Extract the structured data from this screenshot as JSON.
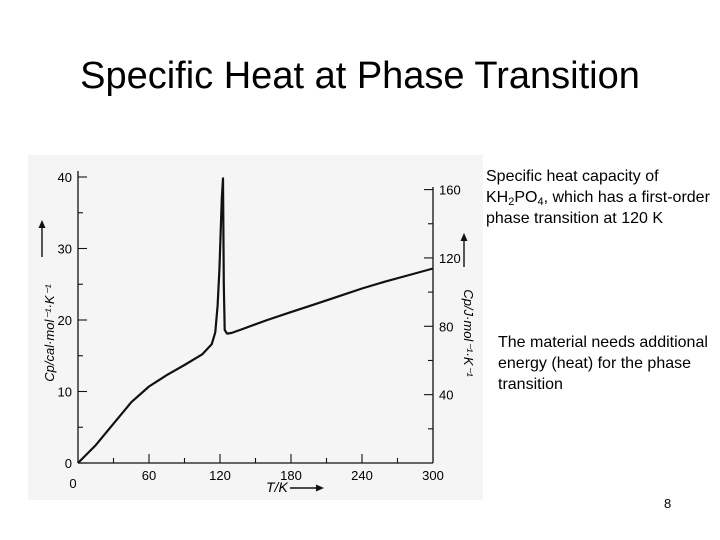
{
  "slide": {
    "title": "Specific Heat at Phase Transition",
    "caption_prefix": "Specific heat capacity of",
    "formula": {
      "k": "KH",
      "h_sub": "2",
      "po": "PO",
      "o_sub": "4"
    },
    "caption_suffix": ", which has a first-order phase transition at 120 K",
    "note": "The material needs additional energy (heat) for the phase transition",
    "page_number": "8"
  },
  "chart_data": {
    "type": "line",
    "x": [
      0,
      15,
      30,
      45,
      60,
      75,
      90,
      105,
      113,
      116,
      118,
      119.5,
      120.5,
      121.5,
      122.5,
      123.2,
      124,
      126,
      130,
      140,
      160,
      180,
      200,
      220,
      240,
      260,
      280,
      300
    ],
    "y": [
      0,
      2.5,
      5.5,
      8.5,
      10.7,
      12.3,
      13.7,
      15.2,
      16.6,
      18.3,
      22,
      27,
      32,
      37,
      39.8,
      25,
      18.6,
      18.1,
      18.2,
      18.8,
      20.0,
      21.1,
      22.2,
      23.3,
      24.4,
      25.4,
      26.3,
      27.2
    ],
    "xlim": [
      0,
      300
    ],
    "ylim": [
      0,
      40
    ],
    "y2lim": [
      0,
      167.36
    ],
    "x_ticks": [
      "60",
      "120",
      "180",
      "240",
      "300"
    ],
    "y_ticks": [
      "0",
      "10",
      "20",
      "30",
      "40"
    ],
    "y2_ticks": [
      "40",
      "80",
      "120",
      "160"
    ],
    "origin_label": "0",
    "xlabel": "T/K",
    "ylabel": "Cp/cal·mol⁻¹·K⁻¹",
    "y2label": "Cp/J·mol⁻¹·K⁻¹"
  }
}
